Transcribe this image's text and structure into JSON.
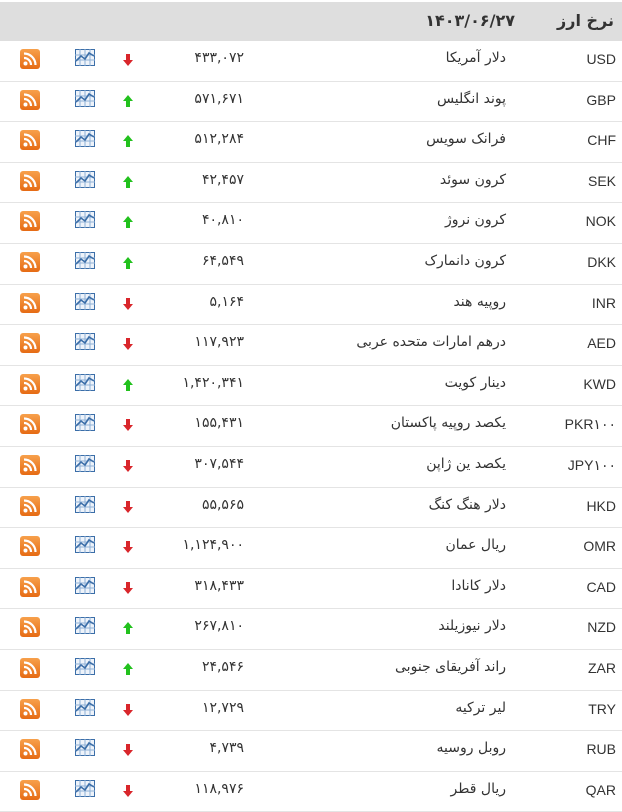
{
  "header": {
    "title": "نرخ ارز",
    "date": "۱۴۰۳/۰۶/۲۷"
  },
  "colors": {
    "up": "#22c11d",
    "down": "#d9262b",
    "rss": "#ee8127",
    "chart_icon": "#3b6ea8"
  },
  "rows": [
    {
      "code": "USD",
      "name": "دلار آمریکا",
      "value": "۴۳۳,۰۷۲",
      "trend": "down"
    },
    {
      "code": "GBP",
      "name": "پوند انگلیس",
      "value": "۵۷۱,۶۷۱",
      "trend": "up"
    },
    {
      "code": "CHF",
      "name": "فرانک سویس",
      "value": "۵۱۲,۲۸۴",
      "trend": "up"
    },
    {
      "code": "SEK",
      "name": "کرون سوئد",
      "value": "۴۲,۴۵۷",
      "trend": "up"
    },
    {
      "code": "NOK",
      "name": "کرون نروژ",
      "value": "۴۰,۸۱۰",
      "trend": "up"
    },
    {
      "code": "DKK",
      "name": "کرون دانمارک",
      "value": "۶۴,۵۴۹",
      "trend": "up"
    },
    {
      "code": "INR",
      "name": "روپیه هند",
      "value": "۵,۱۶۴",
      "trend": "down"
    },
    {
      "code": "AED",
      "name": "درهم امارات متحده عربی",
      "value": "۱۱۷,۹۲۳",
      "trend": "down"
    },
    {
      "code": "KWD",
      "name": "دینار کویت",
      "value": "۱,۴۲۰,۳۴۱",
      "trend": "up"
    },
    {
      "code": "PKR۱۰۰",
      "name": "یکصد روپیه پاکستان",
      "value": "۱۵۵,۴۳۱",
      "trend": "down"
    },
    {
      "code": "JPY۱۰۰",
      "name": "یکصد ین ژاپن",
      "value": "۳۰۷,۵۴۴",
      "trend": "down"
    },
    {
      "code": "HKD",
      "name": "دلار هنگ کنگ",
      "value": "۵۵,۵۶۵",
      "trend": "down"
    },
    {
      "code": "OMR",
      "name": "ریال عمان",
      "value": "۱,۱۲۴,۹۰۰",
      "trend": "down"
    },
    {
      "code": "CAD",
      "name": "دلار کانادا",
      "value": "۳۱۸,۴۳۳",
      "trend": "down"
    },
    {
      "code": "NZD",
      "name": "دلار نیوزیلند",
      "value": "۲۶۷,۸۱۰",
      "trend": "up"
    },
    {
      "code": "ZAR",
      "name": "راند آفریقای جنوبی",
      "value": "۲۴,۵۴۶",
      "trend": "up"
    },
    {
      "code": "TRY",
      "name": "لیر ترکیه",
      "value": "۱۲,۷۲۹",
      "trend": "down"
    },
    {
      "code": "RUB",
      "name": "روبل روسیه",
      "value": "۴,۷۳۹",
      "trend": "down"
    },
    {
      "code": "QAR",
      "name": "ریال قطر",
      "value": "۱۱۸,۹۷۶",
      "trend": "down"
    }
  ]
}
